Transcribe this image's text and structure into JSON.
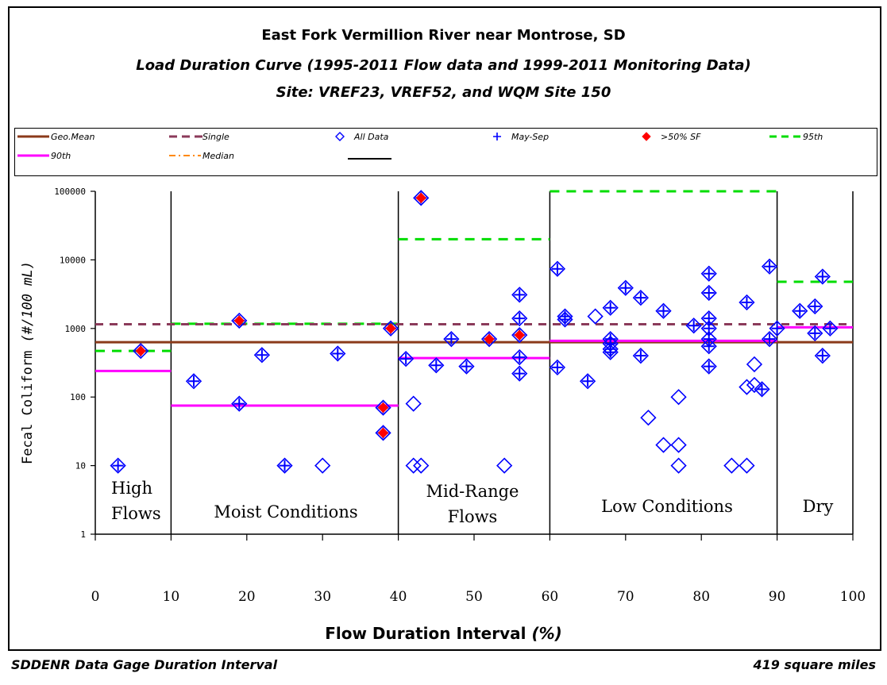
{
  "title": {
    "line1": "East Fork Vermillion River near Montrose, SD",
    "line2": "Load Duration Curve  (1995-2011 Flow data and 1999-2011 Monitoring Data)",
    "line3": "Site:  VREF23, VREF52, and WQM Site 150"
  },
  "footer": {
    "left": "SDDENR Data Gage Duration Interval",
    "right": "419 square miles"
  },
  "colors": {
    "geomean": "#8B3A1A",
    "single": "#8B3A5A",
    "alldata": "#0000FF",
    "maysep": "#0000FF",
    "sf": "#FF0000",
    "p95": "#00DD00",
    "p90": "#FF00FF",
    "median": "#FF8800",
    "black": "#000000"
  },
  "chart_data": {
    "type": "scatter",
    "xlabel": "Flow Duration Interval",
    "xlabel_unit": "(%)",
    "ylabel": "Fecal Coliform",
    "ylabel_unit": "(#/100 mL)",
    "xlim": [
      0,
      100
    ],
    "ylim": [
      1,
      100000
    ],
    "yscale": "log",
    "xticks": [
      0,
      10,
      20,
      30,
      40,
      50,
      60,
      70,
      80,
      90,
      100
    ],
    "yticks": [
      1,
      10,
      100,
      1000,
      10000,
      100000
    ],
    "ytick_labels": [
      "1",
      "10",
      "100",
      "1000",
      "10000",
      "100000"
    ],
    "legend": [
      {
        "key": "geomean",
        "label": "Geo.Mean"
      },
      {
        "key": "single",
        "label": "Single"
      },
      {
        "key": "alldata",
        "label": "All Data"
      },
      {
        "key": "maysep",
        "label": "May-Sep"
      },
      {
        "key": "sf",
        "label": ">50% SF"
      },
      {
        "key": "p95",
        "label": "95th"
      },
      {
        "key": "p90",
        "label": "90th"
      },
      {
        "key": "median",
        "label": "Median"
      },
      {
        "key": "black",
        "label": ""
      }
    ],
    "zone_boundaries": [
      10,
      40,
      60,
      90
    ],
    "zones": [
      {
        "label": "High\nFlows",
        "x": 2
      },
      {
        "label": "Moist Conditions",
        "x": 25
      },
      {
        "label": "Mid-Range\nFlows",
        "x": 50
      },
      {
        "label": "Low Conditions",
        "x": 75
      },
      {
        "label": "Dry",
        "x": 95
      }
    ],
    "geomean_value": 630,
    "single_value": 1150,
    "p95_segments": [
      {
        "x": [
          0,
          10
        ],
        "y": 470
      },
      {
        "x": [
          10,
          40
        ],
        "y": 1170
      },
      {
        "x": [
          40,
          60
        ],
        "y": 20000
      },
      {
        "x": [
          60,
          90
        ],
        "y": 100000
      },
      {
        "x": [
          90,
          100
        ],
        "y": 4800
      }
    ],
    "p90_segments": [
      {
        "x": [
          0,
          10
        ],
        "y": 240
      },
      {
        "x": [
          10,
          40
        ],
        "y": 75
      },
      {
        "x": [
          40,
          60
        ],
        "y": 370
      },
      {
        "x": [
          60,
          90
        ],
        "y": 660
      },
      {
        "x": [
          90,
          100
        ],
        "y": 1040
      }
    ],
    "all_data": [
      [
        3,
        10
      ],
      [
        6,
        470
      ],
      [
        13,
        170
      ],
      [
        19,
        80
      ],
      [
        19,
        1300
      ],
      [
        22,
        410
      ],
      [
        25,
        10
      ],
      [
        30,
        10
      ],
      [
        32,
        430
      ],
      [
        38,
        70
      ],
      [
        38,
        30
      ],
      [
        39,
        1000
      ],
      [
        41,
        360
      ],
      [
        42,
        80
      ],
      [
        42,
        10
      ],
      [
        43,
        10
      ],
      [
        43,
        80000
      ],
      [
        45,
        290
      ],
      [
        47,
        700
      ],
      [
        49,
        280
      ],
      [
        52,
        700
      ],
      [
        54,
        10
      ],
      [
        56,
        3100
      ],
      [
        56,
        1400
      ],
      [
        56,
        800
      ],
      [
        56,
        380
      ],
      [
        56,
        220
      ],
      [
        61,
        7400
      ],
      [
        61,
        270
      ],
      [
        62,
        1500
      ],
      [
        62,
        1350
      ],
      [
        65,
        170
      ],
      [
        66,
        1500
      ],
      [
        68,
        2000
      ],
      [
        68,
        700
      ],
      [
        68,
        600
      ],
      [
        68,
        500
      ],
      [
        68,
        450
      ],
      [
        70,
        3900
      ],
      [
        72,
        2800
      ],
      [
        72,
        400
      ],
      [
        73,
        50
      ],
      [
        75,
        1800
      ],
      [
        75,
        20
      ],
      [
        77,
        100
      ],
      [
        77,
        20
      ],
      [
        77,
        10
      ],
      [
        79,
        1100
      ],
      [
        81,
        6300
      ],
      [
        81,
        3300
      ],
      [
        81,
        1400
      ],
      [
        81,
        1000
      ],
      [
        81,
        700
      ],
      [
        81,
        550
      ],
      [
        81,
        280
      ],
      [
        84,
        10
      ],
      [
        86,
        2400
      ],
      [
        86,
        140
      ],
      [
        86,
        10
      ],
      [
        87,
        300
      ],
      [
        87,
        150
      ],
      [
        88,
        130
      ],
      [
        89,
        8000
      ],
      [
        89,
        700
      ],
      [
        90,
        1000
      ],
      [
        93,
        1800
      ],
      [
        95,
        2100
      ],
      [
        95,
        850
      ],
      [
        96,
        5700
      ],
      [
        96,
        400
      ],
      [
        97,
        1000
      ]
    ],
    "may_sep": [
      [
        3,
        10
      ],
      [
        6,
        470
      ],
      [
        13,
        170
      ],
      [
        19,
        80
      ],
      [
        19,
        1300
      ],
      [
        22,
        410
      ],
      [
        25,
        10
      ],
      [
        32,
        430
      ],
      [
        38,
        70
      ],
      [
        38,
        30
      ],
      [
        39,
        1000
      ],
      [
        41,
        360
      ],
      [
        43,
        80000
      ],
      [
        45,
        290
      ],
      [
        47,
        700
      ],
      [
        49,
        280
      ],
      [
        52,
        700
      ],
      [
        56,
        3100
      ],
      [
        56,
        1400
      ],
      [
        56,
        800
      ],
      [
        56,
        380
      ],
      [
        56,
        220
      ],
      [
        61,
        7400
      ],
      [
        61,
        270
      ],
      [
        62,
        1500
      ],
      [
        62,
        1350
      ],
      [
        65,
        170
      ],
      [
        68,
        2000
      ],
      [
        68,
        700
      ],
      [
        68,
        600
      ],
      [
        68,
        500
      ],
      [
        68,
        450
      ],
      [
        70,
        3900
      ],
      [
        72,
        2800
      ],
      [
        72,
        400
      ],
      [
        75,
        1800
      ],
      [
        79,
        1100
      ],
      [
        81,
        6300
      ],
      [
        81,
        3300
      ],
      [
        81,
        1400
      ],
      [
        81,
        1000
      ],
      [
        81,
        700
      ],
      [
        81,
        550
      ],
      [
        81,
        280
      ],
      [
        86,
        2400
      ],
      [
        88,
        130
      ],
      [
        89,
        8000
      ],
      [
        89,
        700
      ],
      [
        90,
        1000
      ],
      [
        93,
        1800
      ],
      [
        95,
        2100
      ],
      [
        95,
        850
      ],
      [
        96,
        5700
      ],
      [
        96,
        400
      ],
      [
        97,
        1000
      ]
    ],
    "sf_points": [
      [
        6,
        470
      ],
      [
        19,
        1300
      ],
      [
        38,
        70
      ],
      [
        38,
        30
      ],
      [
        39,
        1000
      ],
      [
        43,
        80000
      ],
      [
        52,
        700
      ],
      [
        56,
        800
      ]
    ]
  }
}
